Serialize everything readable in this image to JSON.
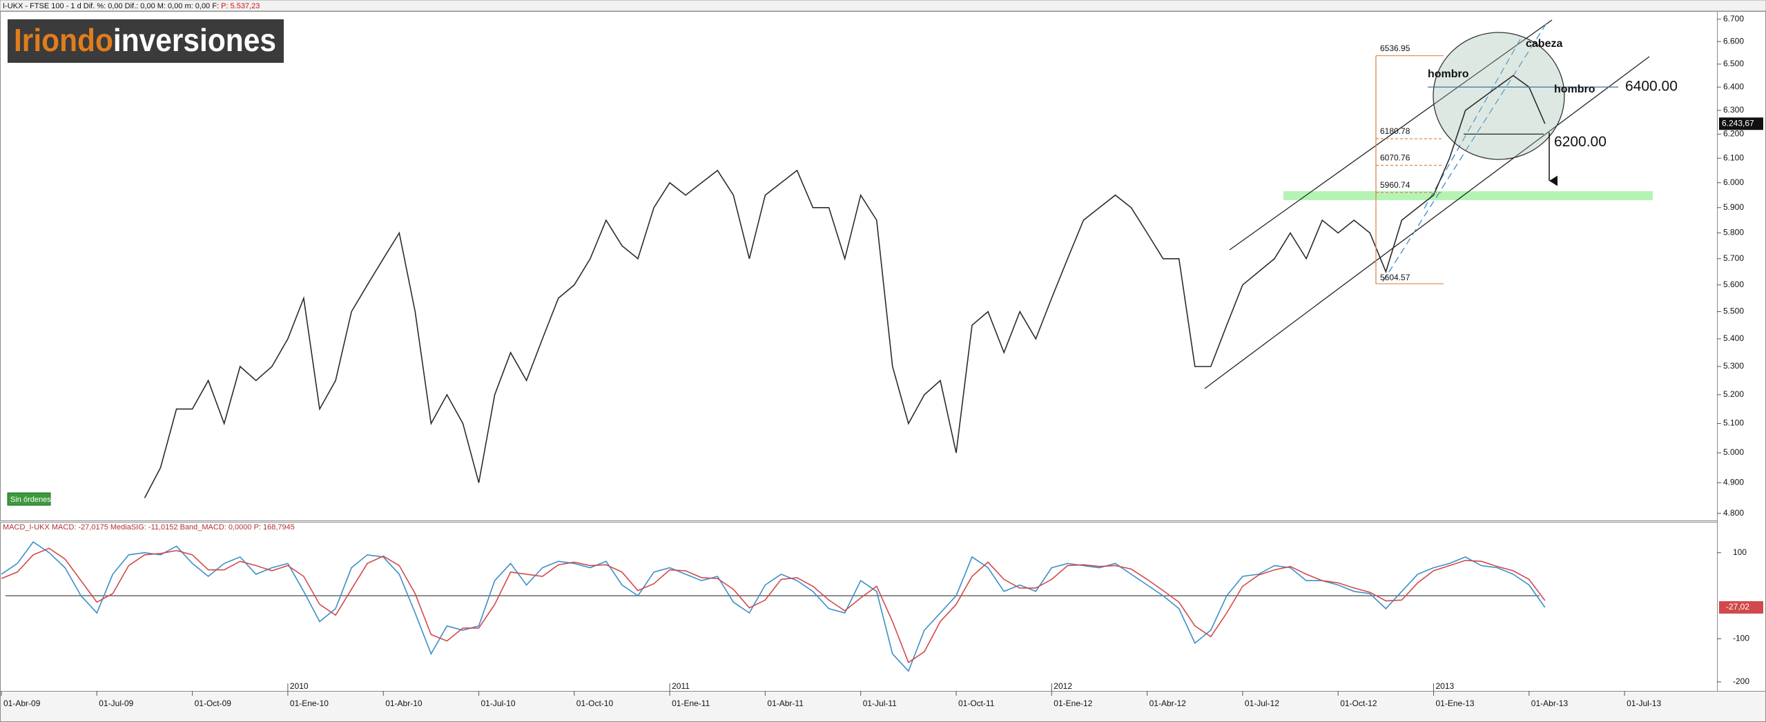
{
  "logo": {
    "bold": "Iriondo",
    "rest": "inversiones"
  },
  "status": "Sin órdenes",
  "chart_data": [
    {
      "type": "line",
      "header": "I-UKX - FTSE 100 - 1 d  Dif. %: 0,00  Dif.: 0,00  M: 0,00  m: 0,00  F:",
      "header_price": "P: 5.537,23",
      "log_scale": true,
      "grid": false,
      "ylim": [
        4777,
        6737
      ],
      "yticks": [
        {
          "value": 6700,
          "label": "6.700"
        },
        {
          "value": 6600,
          "label": "6.600"
        },
        {
          "value": 6500,
          "label": "6.500"
        },
        {
          "value": 6400,
          "label": "6.400"
        },
        {
          "value": 6300,
          "label": "6.300"
        },
        {
          "value": 6200,
          "label": "6.200"
        },
        {
          "value": 6100,
          "label": "6.100"
        },
        {
          "value": 6000,
          "label": "6.000"
        },
        {
          "value": 5900,
          "label": "5.900"
        },
        {
          "value": 5800,
          "label": "5.800"
        },
        {
          "value": 5700,
          "label": "5.700"
        },
        {
          "value": 5600,
          "label": "5.600"
        },
        {
          "value": 5500,
          "label": "5.500"
        },
        {
          "value": 5400,
          "label": "5.400"
        },
        {
          "value": 5300,
          "label": "5.300"
        },
        {
          "value": 5200,
          "label": "5.200"
        },
        {
          "value": 5100,
          "label": "5.100"
        },
        {
          "value": 5000,
          "label": "5.000"
        },
        {
          "value": 4900,
          "label": "4.900"
        },
        {
          "value": 4800,
          "label": "4.800"
        }
      ],
      "series": [
        {
          "color": "#2b2b2b",
          "values": [
            null,
            null,
            null,
            null,
            null,
            null,
            null,
            null,
            null,
            4850,
            4950,
            5150,
            5150,
            5250,
            5100,
            5300,
            5250,
            5300,
            5400,
            5550,
            5150,
            5250,
            5500,
            5600,
            5700,
            5800,
            5500,
            5100,
            5200,
            5100,
            4900,
            5200,
            5350,
            5250,
            5400,
            5550,
            5600,
            5700,
            5850,
            5750,
            5700,
            5900,
            6000,
            5950,
            6000,
            6050,
            5950,
            5700,
            5950,
            6000,
            6050,
            5900,
            5900,
            5700,
            5950,
            5850,
            5300,
            5100,
            5200,
            5250,
            5000,
            5450,
            5500,
            5350,
            5500,
            5400,
            5550,
            5700,
            5850,
            5900,
            5950,
            5900,
            5800,
            5700,
            5700,
            5300,
            5300,
            5450,
            5600,
            5650,
            5700,
            5800,
            5700,
            5850,
            5800,
            5850,
            5800,
            5650,
            5850,
            5900,
            5950,
            6100,
            6300,
            6350,
            6400,
            6450,
            6400,
            6243.67,
            null,
            null,
            null,
            null,
            null,
            null,
            null,
            null,
            null,
            null
          ]
        }
      ],
      "last_price": {
        "value": 6243.67,
        "label": "6.243,67"
      },
      "fib_levels": [
        6536.95,
        6180.78,
        6070.76,
        5960.74,
        5604.57
      ],
      "pattern_labels": [
        "hombro",
        "cabeza",
        "hombro"
      ],
      "levels": [
        {
          "value": 6400,
          "label": "6400.00"
        },
        {
          "value": 6200,
          "label": "6200.00"
        }
      ]
    },
    {
      "type": "line",
      "header": "MACD_I-UKX MACD: -27,0175 MediaSIG: -11,0152 Band_MACD: 0,0000 P: 168,7945",
      "ylim": [
        -221,
        170
      ],
      "yticks": [
        100,
        -100,
        -200
      ],
      "last_value": {
        "value": -27.02,
        "label": "-27,02"
      },
      "categories": [
        "01-Abr-09",
        null,
        null,
        null,
        null,
        null,
        "01-Jul-09",
        null,
        null,
        null,
        null,
        null,
        "01-Oct-09",
        null,
        null,
        null,
        null,
        null,
        "01-Ene-10",
        null,
        null,
        null,
        null,
        null,
        "01-Abr-10",
        null,
        null,
        null,
        null,
        null,
        "01-Jul-10",
        null,
        null,
        null,
        null,
        null,
        "01-Oct-10",
        null,
        null,
        null,
        null,
        null,
        "01-Ene-11",
        null,
        null,
        null,
        null,
        null,
        "01-Abr-11",
        null,
        null,
        null,
        null,
        null,
        "01-Jul-11",
        null,
        null,
        null,
        null,
        null,
        "01-Oct-11",
        null,
        null,
        null,
        null,
        null,
        "01-Ene-12",
        null,
        null,
        null,
        null,
        null,
        "01-Abr-12",
        null,
        null,
        null,
        null,
        null,
        "01-Jul-12",
        null,
        null,
        null,
        null,
        null,
        "01-Oct-12",
        null,
        null,
        null,
        null,
        null,
        "01-Ene-13",
        null,
        null,
        null,
        null,
        null,
        "01-Abr-13",
        null,
        null,
        null,
        null,
        null,
        "01-Jul-13",
        null,
        null,
        null,
        null,
        null
      ],
      "year_markers": [
        "2010",
        "2011",
        "2012",
        "2013"
      ],
      "series": [
        {
          "color": "#3a8fc9",
          "values": [
            50,
            75,
            125,
            100,
            65,
            0,
            -40,
            50,
            95,
            100,
            95,
            115,
            75,
            45,
            75,
            90,
            50,
            65,
            75,
            10,
            -60,
            -30,
            65,
            95,
            90,
            50,
            -40,
            -135,
            -70,
            -80,
            -70,
            35,
            75,
            25,
            65,
            80,
            75,
            65,
            80,
            25,
            0,
            55,
            65,
            50,
            35,
            45,
            -15,
            -40,
            25,
            50,
            35,
            10,
            -30,
            -40,
            35,
            10,
            -135,
            -175,
            -80,
            -40,
            0,
            90,
            65,
            10,
            25,
            10,
            65,
            75,
            70,
            65,
            75,
            50,
            25,
            0,
            -30,
            -110,
            -80,
            0,
            45,
            50,
            70,
            65,
            35,
            35,
            25,
            10,
            5,
            -30,
            10,
            50,
            65,
            75,
            90,
            70,
            65,
            50,
            25,
            -27.0175,
            null,
            null,
            null,
            null,
            null,
            null,
            null,
            null,
            null,
            null
          ]
        },
        {
          "color": "#d0494b",
          "values": [
            40,
            55,
            95,
            110,
            85,
            35,
            -15,
            5,
            70,
            95,
            98,
            105,
            95,
            60,
            60,
            80,
            70,
            58,
            70,
            45,
            -20,
            -45,
            15,
            75,
            92,
            70,
            5,
            -90,
            -105,
            -75,
            -75,
            -20,
            55,
            50,
            45,
            72,
            78,
            70,
            72,
            55,
            12,
            28,
            60,
            58,
            42,
            40,
            15,
            -28,
            -10,
            38,
            42,
            22,
            -10,
            -35,
            -5,
            22,
            -60,
            -155,
            -130,
            -60,
            -20,
            45,
            78,
            38,
            18,
            18,
            38,
            70,
            72,
            68,
            70,
            62,
            38,
            12,
            -15,
            -70,
            -95,
            -40,
            22,
            48,
            60,
            68,
            50,
            35,
            30,
            18,
            8,
            -12,
            -10,
            30,
            58,
            70,
            82,
            80,
            68,
            58,
            38,
            -11.0152,
            null,
            null,
            null,
            null,
            null,
            null,
            null,
            null,
            null,
            null
          ]
        }
      ]
    }
  ]
}
